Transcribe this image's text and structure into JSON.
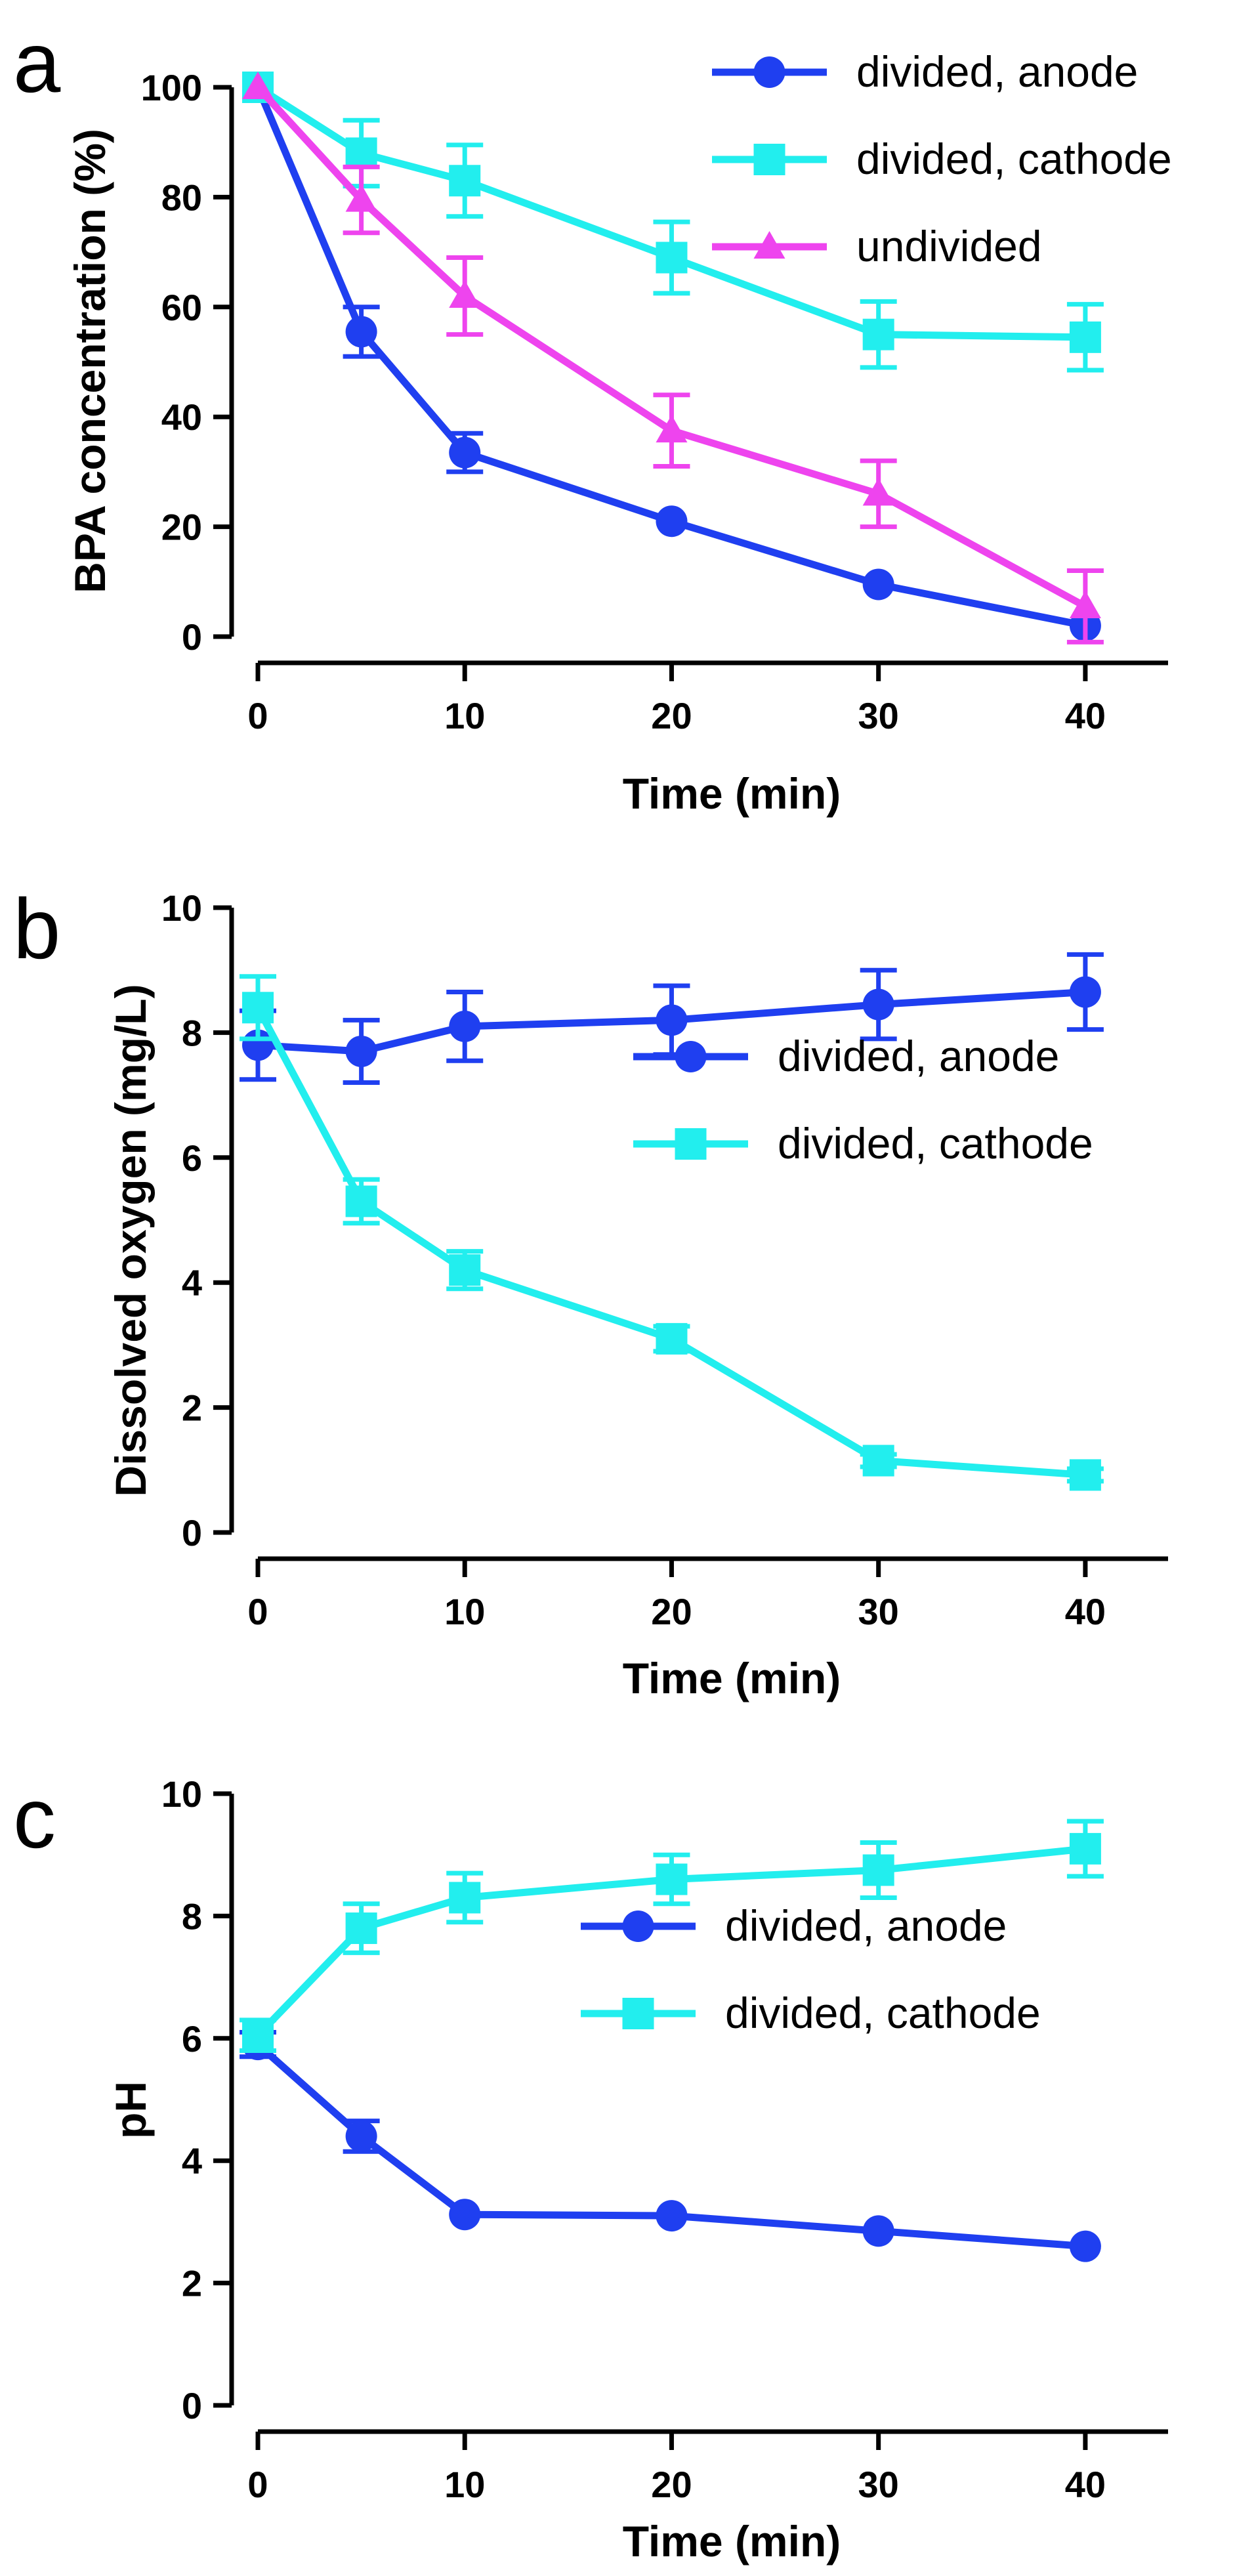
{
  "chart_data": [
    {
      "type": "line",
      "panel": "a",
      "xlabel": "Time (min)",
      "ylabel": "BPA concentration (%)",
      "xlim": [
        0,
        44
      ],
      "ylim": [
        0,
        100
      ],
      "xticks": [
        0,
        10,
        20,
        30,
        40
      ],
      "yticks": [
        0,
        20,
        40,
        60,
        80,
        100
      ],
      "legend_position": "top-right",
      "grid": false,
      "x": [
        0,
        5,
        10,
        20,
        30,
        40
      ],
      "series": [
        {
          "name": "divided, anode",
          "color": "#1f3ff0",
          "marker": "circle",
          "values": [
            100,
            55.5,
            33.5,
            21,
            9.5,
            2
          ],
          "errors": [
            0,
            4.5,
            3.5,
            0,
            0,
            0
          ]
        },
        {
          "name": "divided, cathode",
          "color": "#22eeee",
          "marker": "square",
          "values": [
            100,
            88,
            83,
            69,
            55,
            54.5
          ],
          "errors": [
            0,
            6,
            6.5,
            6.5,
            6,
            6
          ]
        },
        {
          "name": "undivided",
          "color": "#ee44ee",
          "marker": "triangle",
          "values": [
            100,
            79.5,
            62,
            37.5,
            26,
            5.5
          ],
          "errors": [
            0,
            6,
            7,
            6.5,
            6,
            6.5
          ]
        }
      ]
    },
    {
      "type": "line",
      "panel": "b",
      "xlabel": "Time (min)",
      "ylabel": "Dissolved oxygen (mg/L)",
      "xlim": [
        0,
        44
      ],
      "ylim": [
        0,
        10
      ],
      "xticks": [
        0,
        10,
        20,
        30,
        40
      ],
      "yticks": [
        0,
        2,
        4,
        6,
        8,
        10
      ],
      "legend_position": "middle-right",
      "grid": false,
      "x": [
        0,
        5,
        10,
        20,
        30,
        40
      ],
      "series": [
        {
          "name": "divided, anode",
          "color": "#1f3ff0",
          "marker": "circle",
          "values": [
            7.8,
            7.7,
            8.1,
            8.2,
            8.45,
            8.65
          ],
          "errors": [
            0.55,
            0.5,
            0.55,
            0.55,
            0.55,
            0.6
          ]
        },
        {
          "name": "divided, cathode",
          "color": "#22eeee",
          "marker": "square",
          "values": [
            8.4,
            5.3,
            4.2,
            3.1,
            1.15,
            0.92
          ],
          "errors": [
            0.5,
            0.35,
            0.3,
            0.2,
            0.1,
            0.1
          ]
        }
      ]
    },
    {
      "type": "line",
      "panel": "c",
      "xlabel": "Time (min)",
      "ylabel": "pH",
      "xlim": [
        0,
        44
      ],
      "ylim": [
        0,
        10
      ],
      "xticks": [
        0,
        10,
        20,
        30,
        40
      ],
      "yticks": [
        0,
        2,
        4,
        6,
        8,
        10
      ],
      "legend_position": "middle-right",
      "grid": false,
      "x": [
        0,
        5,
        10,
        20,
        30,
        40
      ],
      "series": [
        {
          "name": "divided, anode",
          "color": "#1f3ff0",
          "marker": "circle",
          "values": [
            5.9,
            4.4,
            3.12,
            3.1,
            2.85,
            2.6
          ],
          "errors": [
            0.2,
            0.25,
            0,
            0,
            0,
            0
          ]
        },
        {
          "name": "divided, cathode",
          "color": "#22eeee",
          "marker": "square",
          "values": [
            6.05,
            7.8,
            8.3,
            8.6,
            8.75,
            9.1
          ],
          "errors": [
            0.25,
            0.4,
            0.4,
            0.4,
            0.45,
            0.45
          ]
        }
      ]
    }
  ]
}
